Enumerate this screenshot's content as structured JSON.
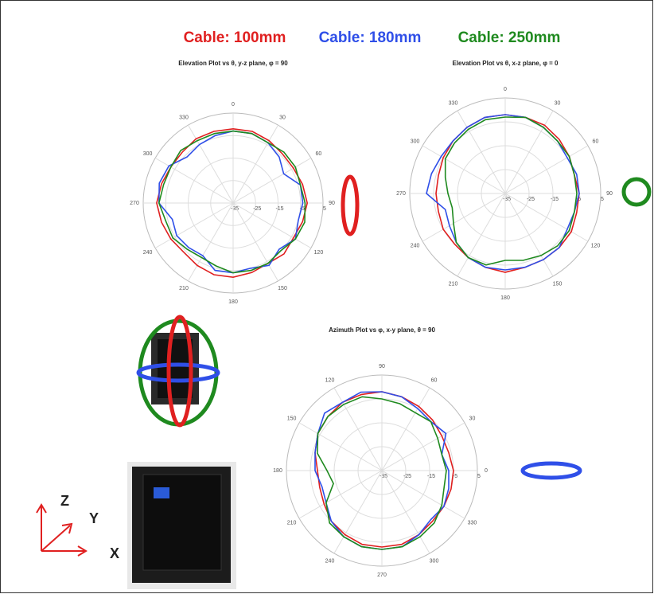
{
  "chart_data": [
    {
      "type": "polar",
      "title": "Elevation Plot vs θ, y-z plane, φ = 90",
      "theta_zero": "N",
      "theta_direction": "clockwise",
      "theta": [
        0,
        15,
        30,
        45,
        60,
        75,
        90,
        105,
        120,
        135,
        150,
        165,
        180,
        195,
        210,
        225,
        240,
        255,
        270,
        285,
        300,
        315,
        330,
        345
      ],
      "thetaticks": [
        0,
        30,
        60,
        90,
        120,
        150,
        180,
        210,
        240,
        270,
        300,
        330
      ],
      "rlim": [
        -35,
        5
      ],
      "rticks": [
        -35,
        -25,
        -15,
        -5,
        5
      ],
      "grid": true,
      "series": [
        {
          "name": "Cable: 100mm",
          "color": "#e02020",
          "values": [
            -2,
            -2,
            -3,
            -4,
            -4,
            -3,
            -2,
            -3,
            -4,
            -3,
            -4,
            -3,
            -2,
            -2,
            -3,
            -4,
            -3,
            -2,
            -1,
            -2,
            -3,
            -3,
            -2,
            -2
          ]
        },
        {
          "name": "Cable: 180mm",
          "color": "#2f4fe8",
          "values": [
            -3,
            -3,
            -4,
            -6,
            -9,
            -4,
            -4,
            -5,
            -3,
            -6,
            -3,
            -5,
            -4,
            -4,
            -8,
            -7,
            -6,
            -7,
            -2,
            -1,
            -2,
            -6,
            -5,
            -4
          ]
        },
        {
          "name": "Cable: 250mm",
          "color": "#1f8a1f",
          "values": [
            -3,
            -3,
            -4,
            -3,
            -3,
            -4,
            -3,
            -2,
            -3,
            -5,
            -4,
            -4,
            -4,
            -6,
            -7,
            -6,
            -4,
            -4,
            -2,
            -3,
            -3,
            -2,
            -3,
            -3
          ]
        }
      ]
    },
    {
      "type": "polar",
      "title": "Elevation Plot vs θ, x-z plane, φ = 0",
      "theta_zero": "N",
      "theta_direction": "clockwise",
      "theta": [
        0,
        15,
        30,
        45,
        60,
        75,
        90,
        105,
        120,
        135,
        150,
        165,
        180,
        195,
        210,
        225,
        240,
        255,
        270,
        285,
        300,
        315,
        330,
        345
      ],
      "thetaticks": [
        0,
        30,
        60,
        90,
        120,
        150,
        180,
        210,
        240,
        270,
        300,
        330
      ],
      "rlim": [
        -35,
        5
      ],
      "rticks": [
        -35,
        -25,
        -15,
        -5,
        5
      ],
      "grid": true,
      "series": [
        {
          "color": "#e02020",
          "values": [
            -2,
            -2,
            -2,
            -3,
            -4,
            -5,
            -4,
            -4,
            -3,
            -3,
            -3,
            -3,
            -2,
            -3,
            -4,
            -5,
            -5,
            -6,
            -6,
            -6,
            -5,
            -4,
            -3,
            -2
          ]
        },
        {
          "color": "#2f4fe8",
          "values": [
            -2,
            -2,
            -3,
            -4,
            -5,
            -4,
            -4,
            -5,
            -5,
            -3,
            -3,
            -3,
            -3,
            -3,
            -4,
            -6,
            -8,
            -9,
            -2,
            -3,
            -4,
            -4,
            -3,
            -2
          ]
        },
        {
          "color": "#1f8a1f",
          "values": [
            -3,
            -2,
            -3,
            -4,
            -4,
            -5,
            -5,
            -5,
            -4,
            -4,
            -5,
            -6,
            -7,
            -4,
            -4,
            -6,
            -10,
            -12,
            -11,
            -9,
            -6,
            -5,
            -4,
            -3
          ]
        }
      ]
    },
    {
      "type": "polar",
      "title": "Azimuth Plot vs φ, x-y plane, θ = 90",
      "theta_zero": "E",
      "theta_direction": "counterclockwise",
      "theta": [
        0,
        15,
        30,
        45,
        60,
        75,
        90,
        105,
        120,
        135,
        150,
        165,
        180,
        195,
        210,
        225,
        240,
        255,
        270,
        285,
        300,
        315,
        330,
        345
      ],
      "thetaticks": [
        0,
        30,
        60,
        90,
        120,
        150,
        180,
        210,
        240,
        270,
        300,
        330
      ],
      "rlim": [
        -35,
        5
      ],
      "rticks": [
        -35,
        -25,
        -15,
        -5,
        5
      ],
      "grid": true,
      "series": [
        {
          "color": "#e02020",
          "values": [
            -5,
            -6,
            -6,
            -5,
            -4,
            -3,
            -2,
            -2,
            -2,
            -3,
            -4,
            -6,
            -8,
            -8,
            -7,
            -5,
            -4,
            -3,
            -3,
            -3,
            -4,
            -5,
            -5,
            -5
          ]
        },
        {
          "color": "#2f4fe8",
          "values": [
            -7,
            -9,
            -4,
            -6,
            -5,
            -3,
            -2,
            -1,
            -2,
            -1,
            -4,
            -6,
            -7,
            -9,
            -8,
            -5,
            -3,
            -2,
            -2,
            -2,
            -4,
            -6,
            -5,
            -6
          ]
        },
        {
          "color": "#1f8a1f",
          "values": [
            -8,
            -9,
            -8,
            -6,
            -7,
            -6,
            -5,
            -3,
            -3,
            -3,
            -4,
            -7,
            -12,
            -14,
            -8,
            -4,
            -3,
            -2,
            -2,
            -2,
            -3,
            -4,
            -6,
            -8
          ]
        }
      ]
    }
  ],
  "axes_labels": {
    "z": "Z",
    "y": "Y",
    "x": "X"
  }
}
